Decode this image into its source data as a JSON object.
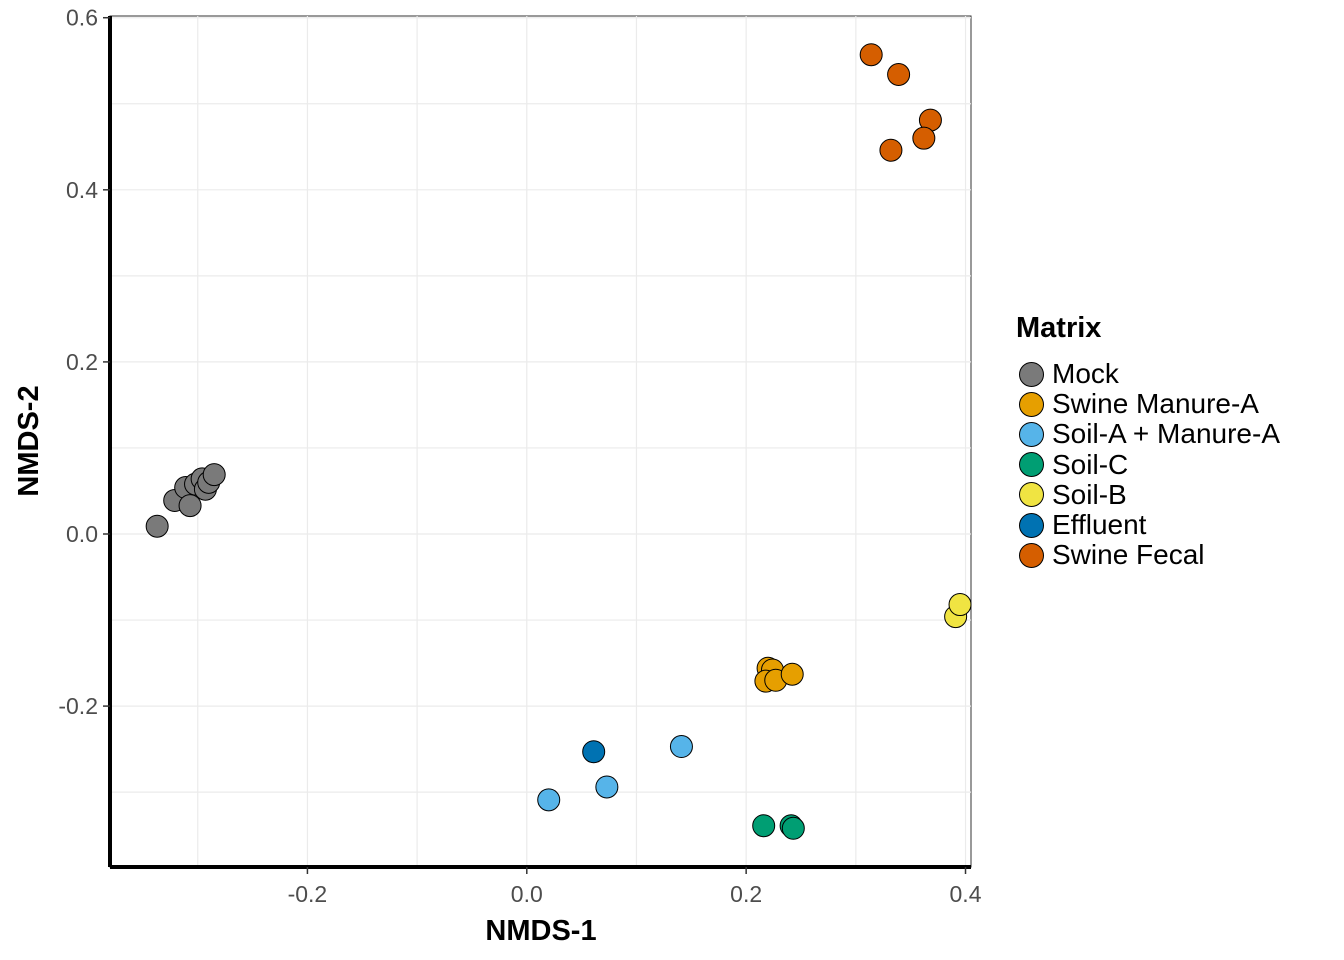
{
  "chart_data": {
    "type": "scatter",
    "title": "",
    "xlabel": "NMDS-1",
    "ylabel": "NMDS-2",
    "xlim": [
      -0.38,
      0.405
    ],
    "ylim": [
      -0.387,
      0.602
    ],
    "x_ticks": [
      -0.2,
      0.0,
      0.2,
      0.4
    ],
    "x_tick_labels": [
      "-0.2",
      "0.0",
      "0.2",
      "0.4"
    ],
    "y_ticks": [
      -0.2,
      0.0,
      0.2,
      0.4,
      0.6
    ],
    "y_tick_labels": [
      "-0.2",
      "0.0",
      "0.2",
      "0.4",
      "0.6"
    ],
    "grid": true,
    "legend_title": "Matrix",
    "legend_position": "right",
    "series": [
      {
        "name": "Mock",
        "color": "#7a7a7a",
        "points": [
          [
            -0.337,
            0.009
          ],
          [
            -0.321,
            0.039
          ],
          [
            -0.311,
            0.054
          ],
          [
            -0.307,
            0.033
          ],
          [
            -0.302,
            0.058
          ],
          [
            -0.296,
            0.064
          ],
          [
            -0.293,
            0.052
          ],
          [
            -0.29,
            0.06
          ],
          [
            -0.285,
            0.069
          ]
        ]
      },
      {
        "name": "Swine Manure-A",
        "color": "#e69f00",
        "points": [
          [
            0.22,
            -0.156
          ],
          [
            0.224,
            -0.158
          ],
          [
            0.218,
            -0.171
          ],
          [
            0.227,
            -0.17
          ],
          [
            0.242,
            -0.163
          ]
        ]
      },
      {
        "name": "Soil-A + Manure-A",
        "color": "#56b4e9",
        "points": [
          [
            0.141,
            -0.247
          ],
          [
            0.073,
            -0.294
          ],
          [
            0.02,
            -0.309
          ]
        ]
      },
      {
        "name": "Soil-C",
        "color": "#009e73",
        "points": [
          [
            0.216,
            -0.339
          ],
          [
            0.241,
            -0.339
          ],
          [
            0.243,
            -0.342
          ]
        ]
      },
      {
        "name": "Soil-B",
        "color": "#f0e442",
        "points": [
          [
            0.391,
            -0.096
          ],
          [
            0.395,
            -0.082
          ]
        ]
      },
      {
        "name": "Effluent",
        "color": "#0072b2",
        "points": [
          [
            0.061,
            -0.253
          ]
        ]
      },
      {
        "name": "Swine Fecal",
        "color": "#d55e00",
        "points": [
          [
            0.314,
            0.557
          ],
          [
            0.339,
            0.534
          ],
          [
            0.368,
            0.481
          ],
          [
            0.362,
            0.46
          ],
          [
            0.332,
            0.446
          ]
        ]
      }
    ]
  }
}
